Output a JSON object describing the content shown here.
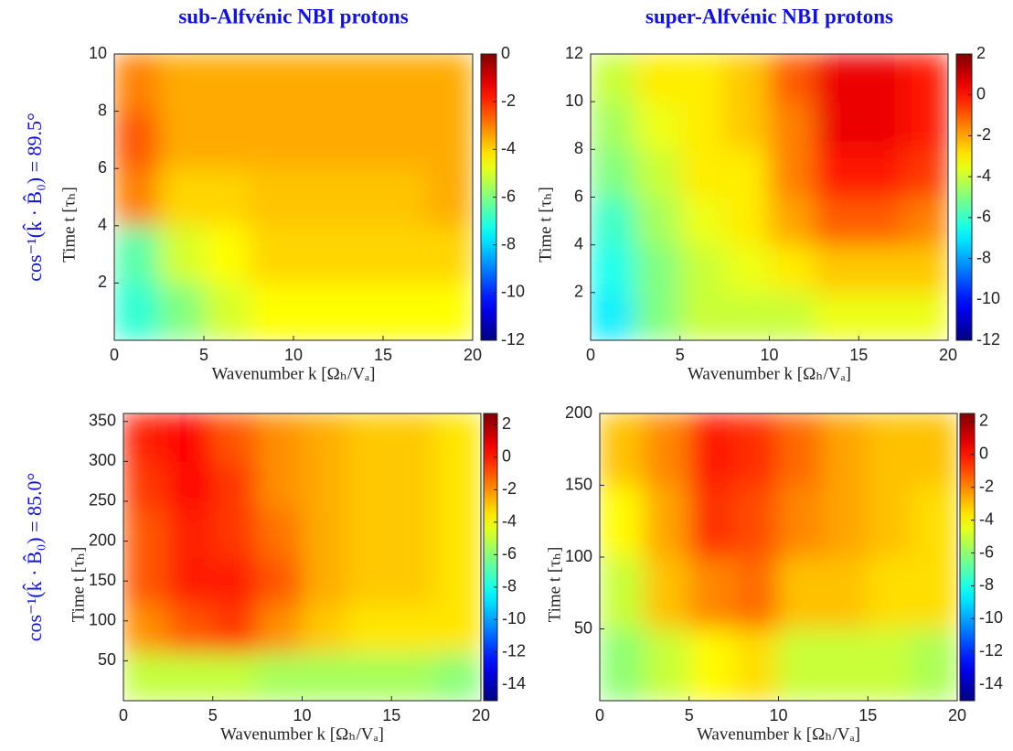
{
  "chart_data": [
    {
      "type": "heatmap",
      "title": "sub-Alfvénic NBI protons",
      "row_label": "cos⁻¹(k̂ · B̂₀) = 89.5°",
      "x_label": "Wavenumber k [Ωₕ/Vₐ]",
      "y_label": "Time t [τₕ]",
      "colormap": "jet",
      "xlim": [
        0,
        20
      ],
      "xticks": [
        0,
        5,
        10,
        15,
        20
      ],
      "ylim": [
        0,
        10
      ],
      "yticks": [
        2,
        4,
        6,
        8,
        10
      ],
      "clim": [
        -12,
        0
      ],
      "cticks": [
        0,
        -2,
        -4,
        -6,
        -8,
        -10,
        -12
      ],
      "z": [
        [
          -7,
          -6,
          -5,
          -4.5,
          -4.5,
          -4.5,
          -4.5,
          -4.5
        ],
        [
          -6.5,
          -5,
          -4.5,
          -4,
          -4,
          -4,
          -4,
          -4
        ],
        [
          -3,
          -4,
          -4,
          -3.8,
          -3.8,
          -3.8,
          -3.8,
          -3.5
        ],
        [
          -2.5,
          -3.5,
          -3.5,
          -3.5,
          -3.5,
          -3.5,
          -3.5,
          -3.5
        ],
        [
          -3,
          -3.5,
          -3.5,
          -3.5,
          -3.5,
          -3.5,
          -3.5,
          -3.5
        ]
      ]
    },
    {
      "type": "heatmap",
      "title": "super-Alfvénic NBI protons",
      "x_label": "Wavenumber k [Ωₕ/Vₐ]",
      "y_label": "Time t [τₕ]",
      "colormap": "jet",
      "xlim": [
        0,
        20
      ],
      "xticks": [
        0,
        5,
        10,
        15,
        20
      ],
      "ylim": [
        0,
        12
      ],
      "yticks": [
        2,
        4,
        6,
        8,
        10,
        12
      ],
      "clim": [
        -12,
        2
      ],
      "cticks": [
        2,
        0,
        -2,
        -4,
        -6,
        -8,
        -10,
        -12
      ],
      "z": [
        [
          -7,
          -5,
          -4,
          -4,
          -4,
          -3.5,
          -3.5,
          -3.5
        ],
        [
          -6.5,
          -5,
          -4,
          -3.5,
          -3,
          -2.5,
          -2.5,
          -2.5
        ],
        [
          -6,
          -4.5,
          -3.5,
          -3,
          -2,
          -1,
          -1,
          -1.5
        ],
        [
          -5,
          -4,
          -3,
          -3,
          -1.5,
          0,
          0,
          -0.5
        ],
        [
          -4.5,
          -3.5,
          -3,
          -2.5,
          -1.5,
          0.5,
          0.5,
          0
        ],
        [
          -4,
          -3,
          -3,
          -2.5,
          -1,
          0.5,
          0.5,
          0
        ]
      ]
    },
    {
      "type": "heatmap",
      "row_label": "cos⁻¹(k̂ · B̂₀) = 85.0°",
      "x_label": "Wavenumber k [Ωₕ/Vₐ]",
      "y_label": "Time t [τₕ]",
      "colormap": "jet",
      "xlim": [
        0,
        20
      ],
      "xticks": [
        0,
        5,
        10,
        15,
        20
      ],
      "ylim": [
        0,
        360
      ],
      "yticks": [
        50,
        100,
        150,
        200,
        250,
        300,
        350
      ],
      "clim": [
        -15,
        2.7
      ],
      "cticks": [
        2,
        0,
        -2,
        -4,
        -6,
        -8,
        -10,
        -12,
        -14
      ],
      "z": [
        [
          -5,
          -5,
          -5,
          -5.5,
          -5.5,
          -5.5,
          -5.5,
          -6
        ],
        [
          -2,
          -1,
          -0.5,
          -2,
          -3,
          -3.5,
          -3.5,
          -3.5
        ],
        [
          -1,
          0,
          0,
          -1,
          -2.5,
          -3,
          -3,
          -3.5
        ],
        [
          -1,
          0,
          -0.5,
          -1.5,
          -2.5,
          -3,
          -3,
          -3.5
        ],
        [
          -0.5,
          0.5,
          -0.5,
          -2,
          -2.5,
          -3,
          -3,
          -3.5
        ],
        [
          0,
          0.5,
          -1,
          -2,
          -2.5,
          -3,
          -3,
          -3.5
        ]
      ]
    },
    {
      "type": "heatmap",
      "x_label": "Wavenumber k [Ωₕ/Vₐ]",
      "y_label": "Time t [τₕ]",
      "colormap": "jet",
      "xlim": [
        0,
        20
      ],
      "xticks": [
        0,
        5,
        10,
        15,
        20
      ],
      "ylim": [
        0,
        200
      ],
      "yticks": [
        50,
        100,
        150,
        200
      ],
      "clim": [
        -15,
        2.5
      ],
      "cticks": [
        2,
        0,
        -2,
        -4,
        -6,
        -8,
        -10,
        -12,
        -14
      ],
      "z": [
        [
          -6,
          -5,
          -4,
          -3.5,
          -5,
          -5,
          -5,
          -5.5
        ],
        [
          -5,
          -3,
          -2,
          -1.5,
          -3,
          -3,
          -3.5,
          -3.5
        ],
        [
          -4,
          -2.5,
          -0.5,
          -1,
          -2,
          -2.5,
          -3,
          -3.5
        ],
        [
          -3,
          -2,
          0,
          -0.5,
          -1.5,
          -2.5,
          -3,
          -3
        ]
      ]
    }
  ]
}
